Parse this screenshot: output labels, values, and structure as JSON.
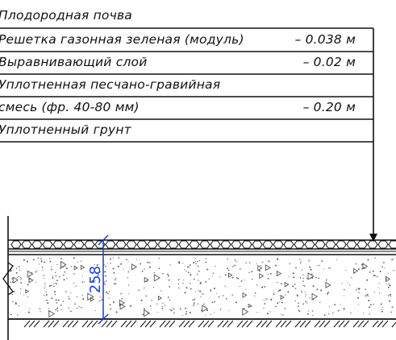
{
  "layers": [
    {
      "name": "Плодородная почва",
      "thickness": ""
    },
    {
      "name": "Решетка газонная зеленая (модуль)",
      "thickness": "– 0.038 м"
    },
    {
      "name": "Выравнивающий слой",
      "thickness": "– 0.02 м"
    },
    {
      "name": "Уплотненная песчано-гравийная",
      "thickness": ""
    },
    {
      "name": "смесь (фр. 40-80 мм)",
      "thickness": "– 0.20 м"
    },
    {
      "name": "Уплотненный грунт",
      "thickness": ""
    }
  ],
  "dimension": {
    "value": "258"
  },
  "colors": {
    "line": "#111111",
    "dimension": "#1c3fd6",
    "aggregate": "#555555"
  }
}
